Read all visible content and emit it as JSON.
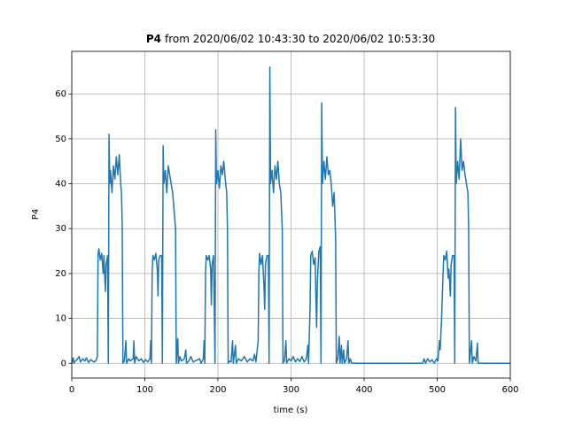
{
  "chart_data": {
    "type": "line",
    "title_bold": "P4",
    "title": "from 2020/06/02 10:43:30 to 2020/06/02 10:53:30",
    "xlabel": "time (s)",
    "ylabel": "P4",
    "xlim": [
      0,
      600
    ],
    "ylim": [
      -3.3,
      69.5
    ],
    "xticks": [
      0,
      100,
      200,
      300,
      400,
      500,
      600
    ],
    "yticks": [
      0,
      10,
      20,
      30,
      40,
      50,
      60
    ],
    "grid": true,
    "x": [
      0,
      2,
      3,
      5,
      8,
      10,
      12,
      15,
      18,
      20,
      23,
      26,
      30,
      33,
      35,
      36,
      37,
      39,
      41,
      43,
      44,
      46,
      47,
      49,
      50,
      51,
      52,
      53,
      55,
      57,
      59,
      61,
      63,
      65,
      67,
      68,
      69,
      70,
      72,
      74,
      75,
      78,
      80,
      84,
      85,
      86,
      88,
      92,
      95,
      98,
      101,
      104,
      107,
      108,
      109,
      110,
      111,
      113,
      115,
      117,
      118,
      119,
      121,
      123,
      124,
      125,
      126,
      128,
      130,
      132,
      134,
      136,
      138,
      140,
      142,
      143,
      145,
      146,
      148,
      150,
      154,
      156,
      157,
      160,
      163,
      166,
      170,
      175,
      177,
      180,
      181,
      182,
      183,
      184,
      186,
      188,
      190,
      191,
      192,
      194,
      196,
      197,
      198,
      200,
      202,
      204,
      206,
      208,
      210,
      212,
      213,
      214,
      216,
      218,
      220,
      221,
      224,
      225,
      228,
      232,
      236,
      240,
      244,
      248,
      250,
      252,
      255,
      256,
      257,
      259,
      261,
      263,
      264,
      265,
      267,
      269,
      270,
      271,
      272,
      274,
      276,
      278,
      280,
      282,
      284,
      286,
      288,
      289,
      291,
      293,
      294,
      297,
      300,
      303,
      306,
      309,
      312,
      315,
      318,
      321,
      323,
      324,
      326,
      327,
      329,
      331,
      333,
      334,
      335,
      336,
      338,
      340,
      341,
      342,
      343,
      345,
      347,
      349,
      351,
      353,
      355,
      357,
      359,
      361,
      362,
      364,
      366,
      367,
      369,
      370,
      372,
      373,
      376,
      378,
      379,
      381,
      383,
      400,
      450,
      480,
      482,
      484,
      487,
      490,
      493,
      496,
      499,
      501,
      503,
      504,
      506,
      508,
      509,
      511,
      513,
      515,
      516,
      518,
      519,
      521,
      523,
      524,
      525,
      526,
      528,
      530,
      532,
      534,
      536,
      538,
      540,
      542,
      543,
      544,
      547,
      548,
      550,
      553,
      555,
      556,
      560,
      600
    ],
    "series": [
      {
        "name": "P4",
        "color": "#1f77b4",
        "values": [
          0,
          1.2,
          0,
          0.5,
          1,
          1.5,
          0.3,
          1,
          0.5,
          1.2,
          0.2,
          0.8,
          0.3,
          0.5,
          1.5,
          24,
          25.5,
          23,
          24.5,
          20,
          24,
          16,
          22,
          24,
          0,
          51,
          40,
          43,
          38,
          44,
          41,
          46,
          42,
          46.5,
          40,
          38,
          31,
          0,
          0.5,
          5,
          0,
          1,
          0.5,
          1,
          5,
          0,
          1.5,
          0.5,
          1,
          0.2,
          0.8,
          0.3,
          1,
          5,
          0,
          20,
          24,
          23,
          24.5,
          21,
          15,
          23,
          24,
          24,
          0,
          48.5,
          40,
          43,
          38,
          44,
          42,
          40,
          38,
          34,
          30,
          0,
          5.5,
          0,
          1.5,
          0.5,
          1,
          3,
          0,
          0.5,
          1.5,
          0.3,
          0.6,
          1,
          0,
          1,
          5,
          0,
          20,
          24,
          23,
          24,
          21,
          13,
          22,
          24,
          0,
          52,
          40,
          43,
          39,
          44,
          42,
          45,
          41,
          38,
          30,
          0,
          0.5,
          0.3,
          5,
          0,
          4,
          0,
          1,
          0.5,
          1.5,
          0.3,
          1,
          0.5,
          2,
          0.3,
          5,
          20,
          24.5,
          22,
          24,
          17,
          12,
          22,
          24,
          24,
          0,
          66,
          40,
          43,
          38,
          44,
          41,
          45,
          40,
          38,
          30,
          0,
          0.5,
          5,
          0,
          1,
          0.5,
          1.5,
          0.3,
          1,
          0.4,
          1.5,
          0.3,
          1,
          4,
          0,
          12,
          24,
          25,
          22,
          23.5,
          15,
          8,
          18,
          25,
          26,
          0,
          58,
          40,
          45,
          41,
          46,
          42,
          43,
          40,
          35,
          38,
          28,
          0,
          1,
          6,
          0,
          4,
          0,
          3,
          0,
          1,
          5,
          0,
          1,
          0,
          0,
          0,
          0,
          1,
          0,
          1,
          0.3,
          0.8,
          0,
          1,
          0.5,
          5,
          3,
          10,
          20,
          24,
          23,
          25,
          19,
          21,
          15,
          22,
          24,
          24,
          0,
          57,
          40,
          45,
          41,
          50,
          43,
          45,
          42,
          40,
          38,
          30,
          0,
          5,
          0,
          1.5,
          0.5,
          4.5,
          0,
          0,
          0
        ]
      }
    ]
  }
}
